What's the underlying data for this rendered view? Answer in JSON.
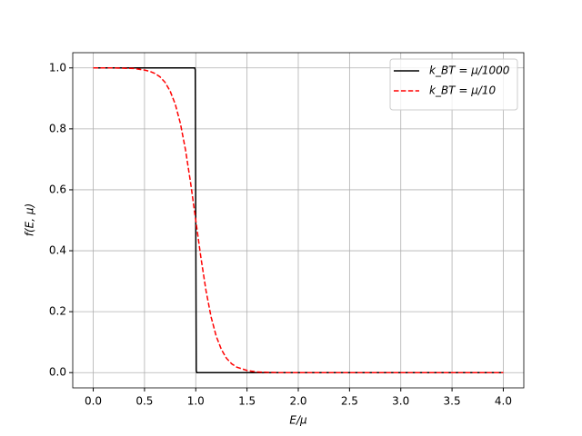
{
  "chart_data": {
    "type": "line",
    "xlabel": "E/μ",
    "ylabel": "f(E, μ)",
    "series": [
      {
        "name": "k_BT = μ/1000",
        "color": "#000000",
        "dash": "solid",
        "x": [
          0,
          0.99,
          0.995,
          1.0,
          1.005,
          1.01,
          4.0
        ],
        "values": [
          1.0,
          1.0,
          0.993,
          0.5,
          0.007,
          0.0,
          0.0
        ]
      },
      {
        "name": "k_BT = μ/10",
        "color": "#ff0000",
        "dash": "dashed",
        "x": [
          0,
          0.1,
          0.2,
          0.3,
          0.4,
          0.5,
          0.55,
          0.6,
          0.65,
          0.7,
          0.75,
          0.8,
          0.85,
          0.9,
          0.95,
          1.0,
          1.05,
          1.1,
          1.15,
          1.2,
          1.25,
          1.3,
          1.35,
          1.4,
          1.5,
          1.6,
          1.8,
          2.0,
          4.0
        ],
        "values": [
          1.0,
          1.0,
          1.0,
          0.999,
          0.998,
          0.993,
          0.989,
          0.982,
          0.971,
          0.953,
          0.924,
          0.881,
          0.818,
          0.731,
          0.622,
          0.5,
          0.378,
          0.269,
          0.182,
          0.119,
          0.076,
          0.047,
          0.029,
          0.018,
          0.007,
          0.002,
          0.0,
          0.0,
          0.0
        ]
      }
    ],
    "xlim": [
      -0.2,
      4.2
    ],
    "ylim": [
      -0.05,
      1.05
    ],
    "xticks": [
      {
        "value": 0,
        "label": "0.0"
      },
      {
        "value": 0.5,
        "label": "0.5"
      },
      {
        "value": 1,
        "label": "1.0"
      },
      {
        "value": 1.5,
        "label": "1.5"
      },
      {
        "value": 2,
        "label": "2.0"
      },
      {
        "value": 2.5,
        "label": "2.5"
      },
      {
        "value": 3,
        "label": "3.0"
      },
      {
        "value": 3.5,
        "label": "3.5"
      },
      {
        "value": 4,
        "label": "4.0"
      }
    ],
    "yticks": [
      {
        "value": 0,
        "label": "0.0"
      },
      {
        "value": 0.2,
        "label": "0.2"
      },
      {
        "value": 0.4,
        "label": "0.4"
      },
      {
        "value": 0.6,
        "label": "0.6"
      },
      {
        "value": 0.8,
        "label": "0.8"
      },
      {
        "value": 1,
        "label": "1.0"
      }
    ],
    "grid": true,
    "legend": "upper right"
  }
}
